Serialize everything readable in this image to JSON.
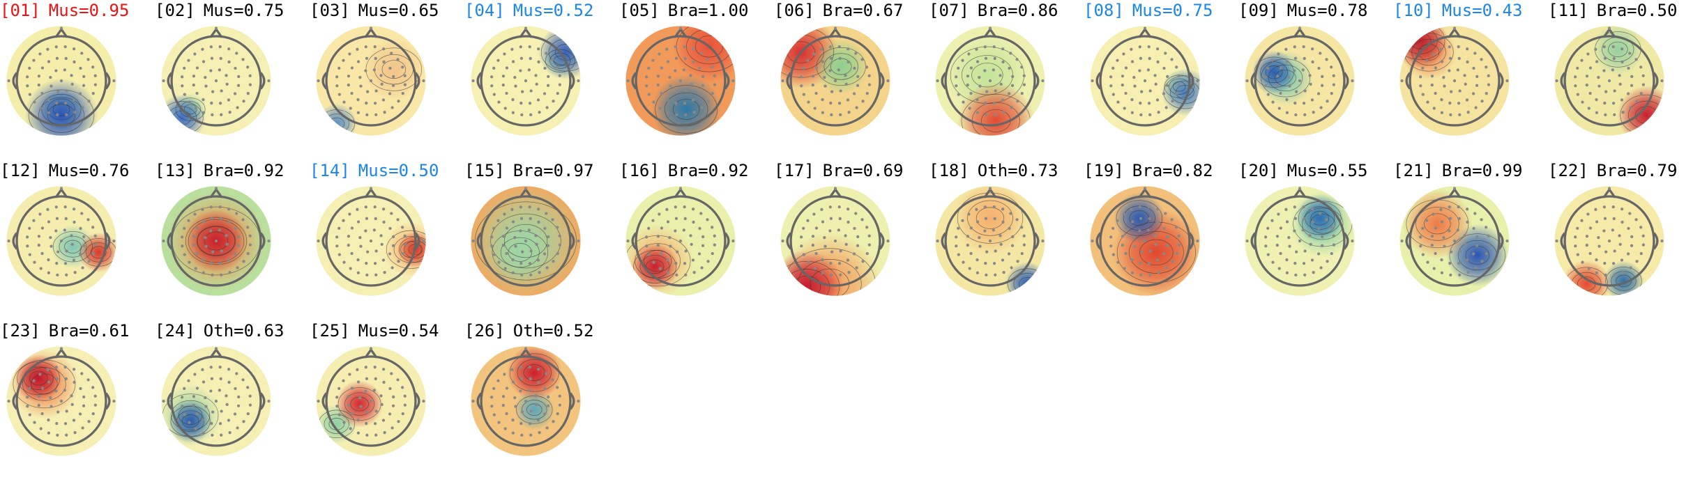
{
  "figure": {
    "components": [
      {
        "index": "[01]",
        "label": "Mus=0.95",
        "flag": "rejected",
        "colors": {
          "bg": "#f5edaa",
          "c1": "#2c57b8",
          "c2": "#7fc2a8"
        }
      },
      {
        "index": "[02]",
        "label": "Mus=0.75",
        "flag": "normal",
        "colors": {
          "bg": "#f6efb3",
          "c1": "#3e6fbf",
          "c2": "#a9d6a2"
        }
      },
      {
        "index": "[03]",
        "label": "Mus=0.65",
        "flag": "normal",
        "colors": {
          "bg": "#f8e7a7",
          "c1": "#5d8fc4",
          "c2": "#f2c48a"
        }
      },
      {
        "index": "[04]",
        "label": "Mus=0.52",
        "flag": "uncertain",
        "colors": {
          "bg": "#f6f0b2",
          "c1": "#3a62b6",
          "c2": "#9fd2a6"
        }
      },
      {
        "index": "[05]",
        "label": "Bra=1.00",
        "flag": "normal",
        "colors": {
          "bg": "#f29a59",
          "c1": "#2c78a8",
          "c2": "#e8533c"
        }
      },
      {
        "index": "[06]",
        "label": "Bra=0.67",
        "flag": "normal",
        "colors": {
          "bg": "#f4d48a",
          "c1": "#8ccf8f",
          "c2": "#d7302e"
        }
      },
      {
        "index": "[07]",
        "label": "Bra=0.86",
        "flag": "normal",
        "colors": {
          "bg": "#eef0b0",
          "c1": "#e14b33",
          "c2": "#c4e39a"
        }
      },
      {
        "index": "[08]",
        "label": "Mus=0.75",
        "flag": "uncertain",
        "colors": {
          "bg": "#f7efb2",
          "c1": "#4a7fbe",
          "c2": "#b6dda0"
        }
      },
      {
        "index": "[09]",
        "label": "Mus=0.78",
        "flag": "normal",
        "colors": {
          "bg": "#f5e6a4",
          "c1": "#2b5fb4",
          "c2": "#80c8b0"
        }
      },
      {
        "index": "[10]",
        "label": "Mus=0.43",
        "flag": "uncertain",
        "colors": {
          "bg": "#f5e3a0",
          "c1": "#c0202e",
          "c2": "#f18a52"
        }
      },
      {
        "index": "[11]",
        "label": "Bra=0.50",
        "flag": "normal",
        "colors": {
          "bg": "#f0e9a6",
          "c1": "#c8202f",
          "c2": "#97d0a0"
        }
      },
      {
        "index": "[12]",
        "label": "Mus=0.76",
        "flag": "normal",
        "colors": {
          "bg": "#f5edae",
          "c1": "#d63a2c",
          "c2": "#7fc6b1"
        }
      },
      {
        "index": "[13]",
        "label": "Bra=0.92",
        "flag": "normal",
        "colors": {
          "bg": "#b9df9d",
          "c1": "#c8202c",
          "c2": "#f08f50"
        }
      },
      {
        "index": "[14]",
        "label": "Mus=0.50",
        "flag": "uncertain",
        "colors": {
          "bg": "#f6efb3",
          "c1": "#d73b2d",
          "c2": "#f7b575"
        }
      },
      {
        "index": "[15]",
        "label": "Bra=0.97",
        "flag": "normal",
        "colors": {
          "bg": "#f3a85f",
          "c1": "#2f79b0",
          "c2": "#9fd5a4"
        }
      },
      {
        "index": "[16]",
        "label": "Bra=0.92",
        "flag": "normal",
        "colors": {
          "bg": "#eaf0ac",
          "c1": "#c9202f",
          "c2": "#f7b070"
        }
      },
      {
        "index": "[17]",
        "label": "Bra=0.69",
        "flag": "normal",
        "colors": {
          "bg": "#edf0ae",
          "c1": "#c8182e",
          "c2": "#f49a59"
        }
      },
      {
        "index": "[18]",
        "label": "Oth=0.73",
        "flag": "normal",
        "colors": {
          "bg": "#f4e7a3",
          "c1": "#2d5fb3",
          "c2": "#f5b06c"
        }
      },
      {
        "index": "[19]",
        "label": "Bra=0.82",
        "flag": "normal",
        "colors": {
          "bg": "#f2c07a",
          "c1": "#2a5ab0",
          "c2": "#e0472f"
        }
      },
      {
        "index": "[20]",
        "label": "Mus=0.55",
        "flag": "normal",
        "colors": {
          "bg": "#eef1b2",
          "c1": "#2f6fb3",
          "c2": "#8fd0a6"
        }
      },
      {
        "index": "[21]",
        "label": "Bra=0.99",
        "flag": "normal",
        "colors": {
          "bg": "#e8f0ac",
          "c1": "#f07a45",
          "c2": "#2b56b2"
        }
      },
      {
        "index": "[22]",
        "label": "Bra=0.79",
        "flag": "normal",
        "colors": {
          "bg": "#f6eaa8",
          "c1": "#2f6fa8",
          "c2": "#e24a30"
        }
      },
      {
        "index": "[23]",
        "label": "Bra=0.61",
        "flag": "normal",
        "colors": {
          "bg": "#f5efb4",
          "c1": "#c3162c",
          "c2": "#f08a52"
        }
      },
      {
        "index": "[24]",
        "label": "Oth=0.63",
        "flag": "normal",
        "colors": {
          "bg": "#f6efb4",
          "c1": "#2a5cb0",
          "c2": "#9fd4a2"
        }
      },
      {
        "index": "[25]",
        "label": "Mus=0.54",
        "flag": "normal",
        "colors": {
          "bg": "#f6eeb1",
          "c1": "#d22a2f",
          "c2": "#8fcfa6"
        }
      },
      {
        "index": "[26]",
        "label": "Oth=0.52",
        "flag": "normal",
        "colors": {
          "bg": "#f3c47d",
          "c1": "#cc1f2d",
          "c2": "#5fa7b9"
        }
      }
    ]
  }
}
